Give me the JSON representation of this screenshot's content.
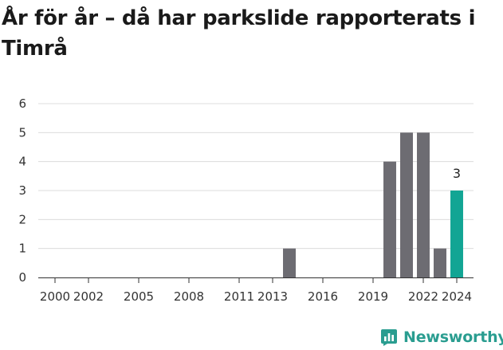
{
  "title": "År för år – då har parkslide rapporterats i Timrå",
  "brand": {
    "name": "Newsworthy",
    "icon": "newsworthy-logo-icon"
  },
  "colors": {
    "bar": "#6d6c72",
    "highlight": "#12a594",
    "grid": "#dcdcdc",
    "axis": "#333333",
    "brand": "#2a9d90"
  },
  "chart_data": {
    "type": "bar",
    "title": "År för år – då har parkslide rapporterats i Timrå",
    "xlabel": "",
    "ylabel": "",
    "x_domain": [
      1999,
      2025
    ],
    "ylim": [
      0,
      6
    ],
    "yticks": [
      0,
      1,
      2,
      3,
      4,
      5,
      6
    ],
    "xticks": [
      2000,
      2002,
      2005,
      2008,
      2011,
      2013,
      2016,
      2019,
      2022,
      2024
    ],
    "grid": true,
    "highlight_year": 2024,
    "bars": [
      {
        "year": 2014,
        "value": 1
      },
      {
        "year": 2020,
        "value": 4
      },
      {
        "year": 2021,
        "value": 5
      },
      {
        "year": 2022,
        "value": 5
      },
      {
        "year": 2023,
        "value": 1
      },
      {
        "year": 2024,
        "value": 3
      }
    ],
    "data_labels": [
      {
        "year": 2024,
        "value": 3,
        "text": "3"
      }
    ]
  }
}
